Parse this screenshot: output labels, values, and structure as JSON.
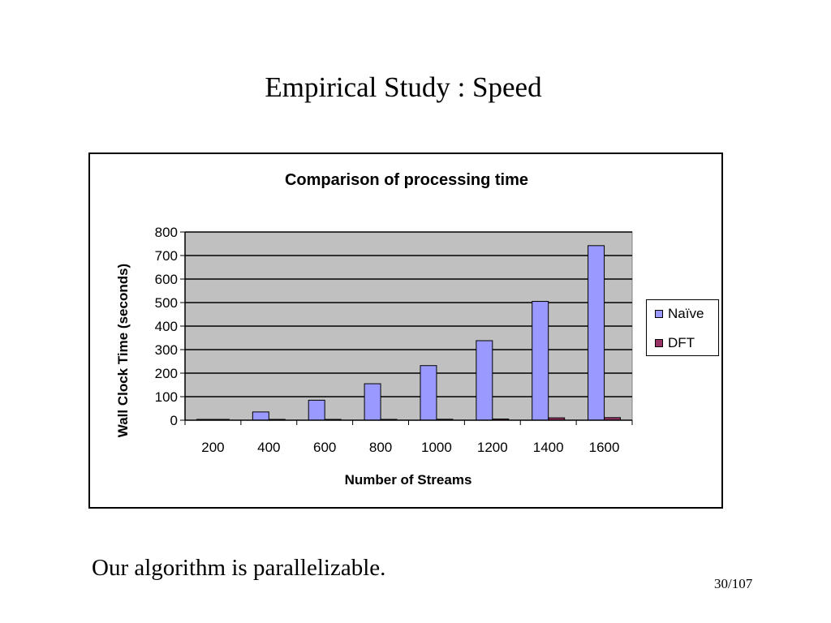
{
  "slide": {
    "title": "Empirical Study : Speed",
    "note": "Our algorithm is parallelizable.",
    "page_number": "30/107"
  },
  "chart_data": {
    "type": "bar",
    "title": "Comparison of processing time",
    "xlabel": "Number of Streams",
    "ylabel": "Wall Clock Time (seconds)",
    "categories": [
      "200",
      "400",
      "600",
      "800",
      "1000",
      "1200",
      "1400",
      "1600"
    ],
    "series": [
      {
        "name": "Naïve",
        "color": "#9999ff",
        "values": [
          0,
          35,
          85,
          155,
          232,
          338,
          505,
          742
        ]
      },
      {
        "name": "DFT",
        "color": "#993366",
        "values": [
          2,
          1,
          3,
          3,
          4,
          5,
          10,
          11
        ]
      }
    ],
    "ylim": [
      0,
      800
    ],
    "yticks": [
      0,
      100,
      200,
      300,
      400,
      500,
      600,
      700,
      800
    ],
    "grid": true,
    "plot_background": "#c0c0c0",
    "legend_position": "right"
  }
}
